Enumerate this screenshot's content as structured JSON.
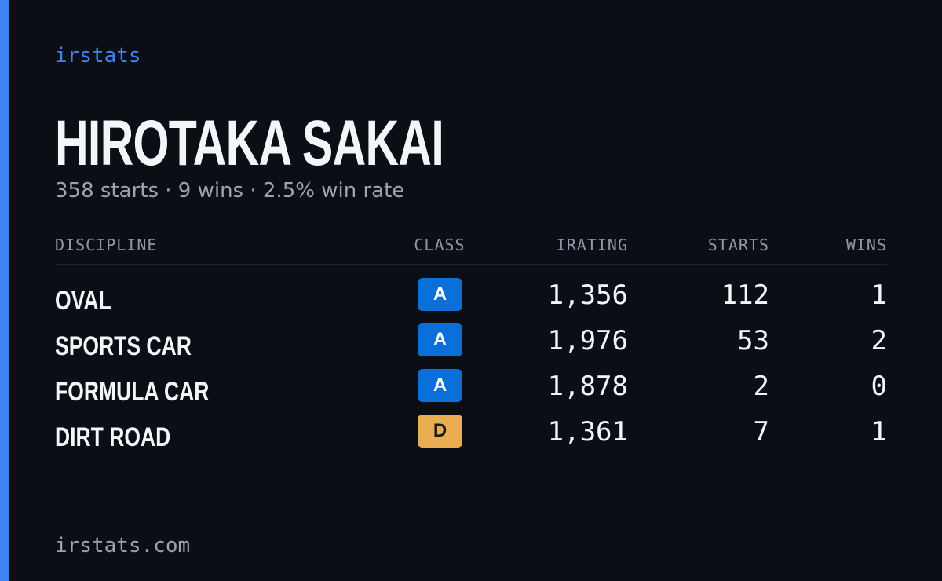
{
  "brand": "irstats",
  "driver": {
    "name": "HIROTAKA SAKAI",
    "summary": "358 starts · 9 wins · 2.5% win rate"
  },
  "table": {
    "headers": [
      "DISCIPLINE",
      "CLASS",
      "IRATING",
      "STARTS",
      "WINS"
    ],
    "rows": [
      {
        "discipline": "OVAL",
        "class": "A",
        "class_color": "#0a6fd8",
        "irating": "1,356",
        "starts": "112",
        "wins": "1"
      },
      {
        "discipline": "SPORTS CAR",
        "class": "A",
        "class_color": "#0a6fd8",
        "irating": "1,976",
        "starts": "53",
        "wins": "2"
      },
      {
        "discipline": "FORMULA CAR",
        "class": "A",
        "class_color": "#0a6fd8",
        "irating": "1,878",
        "starts": "2",
        "wins": "0"
      },
      {
        "discipline": "DIRT ROAD",
        "class": "D",
        "class_color": "#e9ad52",
        "irating": "1,361",
        "starts": "7",
        "wins": "1"
      }
    ]
  },
  "footer": "irstats.com"
}
